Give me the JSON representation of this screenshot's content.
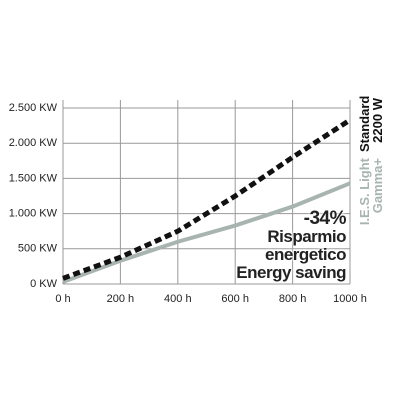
{
  "chart_data": {
    "type": "line",
    "x": [
      0,
      200,
      400,
      600,
      800,
      1000
    ],
    "series": [
      {
        "name": "Standard 2200 W",
        "color": "#111111",
        "dashed": true,
        "values": [
          80,
          380,
          750,
          1250,
          1800,
          2330
        ]
      },
      {
        "name": "I.E.S. Light Gamma+",
        "color": "#a8b4b0",
        "dashed": false,
        "values": [
          30,
          330,
          600,
          830,
          1100,
          1430
        ]
      }
    ],
    "annotations": [
      "-34%",
      "Risparmio",
      "energetico",
      "Energy saving"
    ],
    "xlim": [
      0,
      1000
    ],
    "xticks": [
      {
        "value": 0,
        "label": "0 h"
      },
      {
        "value": 200,
        "label": "200 h"
      },
      {
        "value": 400,
        "label": "400 h"
      },
      {
        "value": 600,
        "label": "600 h"
      },
      {
        "value": 800,
        "label": "800 h"
      },
      {
        "value": 1000,
        "label": "1000 h"
      }
    ],
    "ylim": [
      0,
      2500
    ],
    "yticks": [
      {
        "value": 0,
        "label": "0 KW"
      },
      {
        "value": 500,
        "label": "500 KW"
      },
      {
        "value": 1000,
        "label": "1.000 KW"
      },
      {
        "value": 1500,
        "label": "1.500 KW"
      },
      {
        "value": 2000,
        "label": "2.000 KW"
      },
      {
        "value": 2500,
        "label": "2.500 KW"
      }
    ],
    "grid": true
  }
}
